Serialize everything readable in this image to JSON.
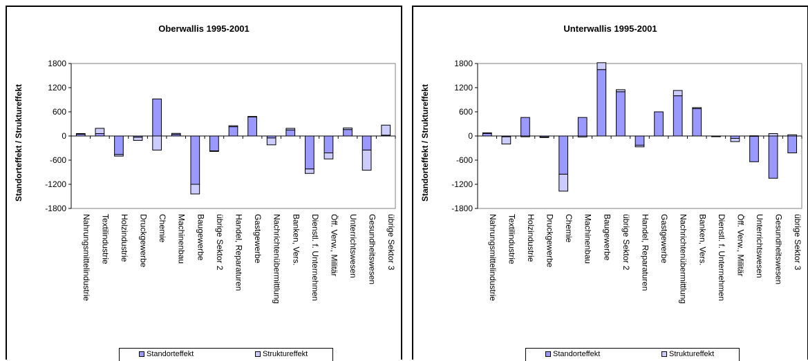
{
  "colors": {
    "standort": "#9999ff",
    "struktur": "#ccccff",
    "frame": "#000000",
    "plot_border": "#808080"
  },
  "legend": {
    "standort_label": "Standorteffekt",
    "struktur_label": "Struktureffekt"
  },
  "chart_data": [
    {
      "type": "bar",
      "stacked": true,
      "title": "Oberwallis 1995-2001",
      "ylabel": "Standorteffekt / Struktureffekt",
      "xlabel": "",
      "ylim": [
        -1800,
        1800
      ],
      "yticks": [
        1800,
        1200,
        600,
        0,
        -600,
        -1200,
        -1800
      ],
      "grid": false,
      "legend_position": "bottom",
      "categories": [
        "Nahrungsmittelindustrie",
        "Textilindustrie",
        "Holzindustrie",
        "Druckgewerbe",
        "Chemie",
        "Machinenbau",
        "Baugewerbe",
        "übrige Sektor 2",
        "Handel, Reparaturen",
        "Gastgewerbe",
        "Nachrichtenübermittlung",
        "Banken, Vers.",
        "Dienstl. f. Unternehmen",
        "Öff. Verw., Militär",
        "Unterrichtswesen",
        "Gesundheitswesen",
        "übrige Sektor 3"
      ],
      "series": [
        {
          "name": "Standorteffekt",
          "values": [
            45,
            60,
            -460,
            -30,
            920,
            40,
            -1200,
            -370,
            230,
            480,
            -50,
            150,
            -820,
            -420,
            160,
            -350,
            20
          ]
        },
        {
          "name": "Struktureffekt",
          "values": [
            15,
            130,
            -40,
            -80,
            -350,
            25,
            -240,
            -5,
            25,
            5,
            -170,
            40,
            -110,
            -150,
            40,
            -500,
            250
          ]
        }
      ]
    },
    {
      "type": "bar",
      "stacked": true,
      "title": "Unterwallis 1995-2001",
      "ylabel": "Standorteffekt / Struktureffekt",
      "xlabel": "",
      "ylim": [
        -1800,
        1800
      ],
      "yticks": [
        1800,
        1200,
        600,
        0,
        -600,
        -1200,
        -1800
      ],
      "grid": false,
      "legend_position": "bottom",
      "categories": [
        "Nahrungsmittelindustrie",
        "Textilindustrie",
        "Holzindustrie",
        "Druckgewerbe",
        "Chemie",
        "Machinenbau",
        "Baugewerbe",
        "übrige Sektor 2",
        "Handel, Reparaturen",
        "Gastgewerbe",
        "Nachrichtenübermittlung",
        "Banken, Vers.",
        "Dienstl. f. Unternehmen",
        "Öff. Verw., Militär",
        "Unterrichtswesen",
        "Gesundheitswesen",
        "übrige Sektor 3"
      ],
      "series": [
        {
          "name": "Standorteffekt",
          "values": [
            60,
            -20,
            460,
            -25,
            -950,
            460,
            1650,
            1100,
            -230,
            600,
            1000,
            680,
            -5,
            -60,
            -640,
            -1050,
            -420
          ]
        },
        {
          "name": "Struktureffekt",
          "values": [
            20,
            -180,
            -20,
            -5,
            -420,
            -25,
            170,
            50,
            -40,
            0,
            130,
            25,
            -5,
            -80,
            5,
            60,
            30
          ]
        }
      ]
    }
  ]
}
